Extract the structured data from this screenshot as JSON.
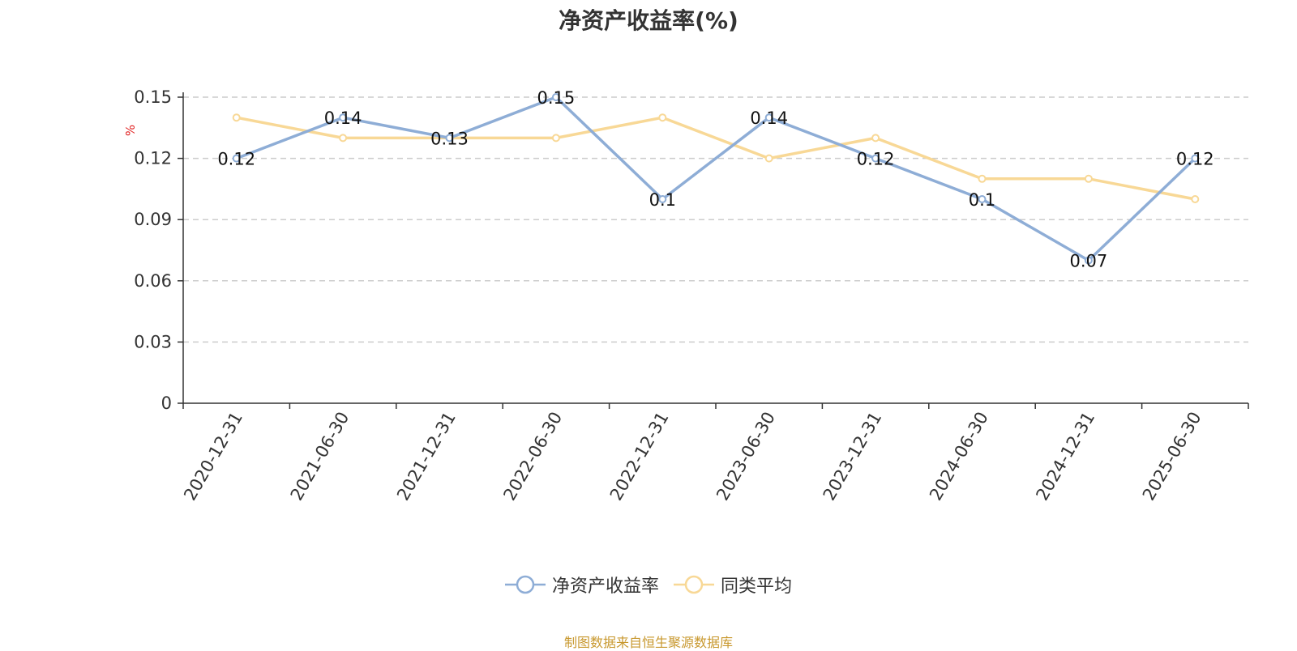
{
  "chart_data": {
    "type": "line",
    "title": "净资产收益率(%)",
    "ylabel": "%",
    "xlabel": "",
    "ylim": [
      0,
      0.15
    ],
    "yticks": [
      "0",
      "0.03",
      "0.06",
      "0.09",
      "0.12",
      "0.15"
    ],
    "grid": true,
    "legend_position": "bottom-center",
    "categories": [
      "2020-12-31",
      "2021-06-30",
      "2021-12-31",
      "2022-06-30",
      "2022-12-31",
      "2023-06-30",
      "2023-12-31",
      "2024-06-30",
      "2024-12-31",
      "2025-06-30"
    ],
    "series": [
      {
        "name": "净资产收益率",
        "color": "#8eadd6",
        "values": [
          0.12,
          0.14,
          0.13,
          0.15,
          0.1,
          0.14,
          0.12,
          0.1,
          0.07,
          0.12
        ],
        "labels": [
          "0.12",
          "0.14",
          "0.13",
          "0.15",
          "0.1",
          "0.14",
          "0.12",
          "0.1",
          "0.07",
          "0.12"
        ]
      },
      {
        "name": "同类平均",
        "color": "#f8d896",
        "values": [
          0.14,
          0.13,
          0.13,
          0.13,
          0.14,
          0.12,
          0.13,
          0.11,
          0.11,
          0.1
        ]
      }
    ],
    "source": "制图数据来自恒生聚源数据库"
  }
}
